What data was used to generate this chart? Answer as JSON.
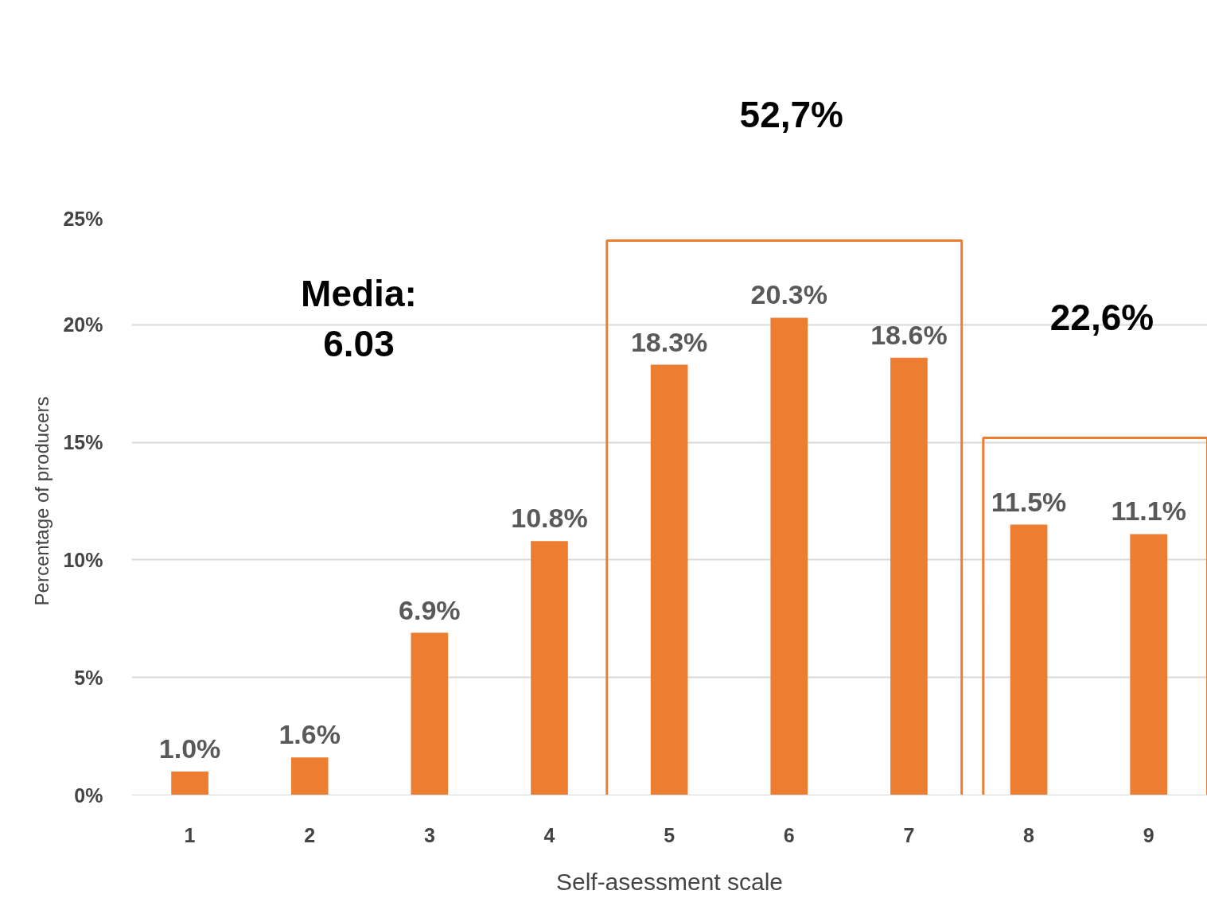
{
  "chart_data": {
    "type": "bar",
    "xlabel": "Self-asessment scale",
    "ylabel": "Percentage of producers",
    "categories": [
      "1",
      "2",
      "3",
      "4",
      "5",
      "6",
      "7",
      "8",
      "9"
    ],
    "values": [
      1.0,
      1.6,
      6.9,
      10.8,
      18.3,
      20.3,
      18.6,
      11.5,
      11.1
    ],
    "value_labels": [
      "1.0%",
      "1.6%",
      "6.9%",
      "10.8%",
      "18.3%",
      "20.3%",
      "18.6%",
      "11.5%",
      "11.1%"
    ],
    "color": "#ed7d31",
    "ylim": [
      0,
      25
    ],
    "yticks": [
      {
        "value": 0,
        "label": "0%"
      },
      {
        "value": 5,
        "label": "5%"
      },
      {
        "value": 10,
        "label": "10%"
      },
      {
        "value": 15,
        "label": "15%"
      },
      {
        "value": 20,
        "label": "20%"
      },
      {
        "value": 25,
        "label": "25%"
      }
    ],
    "grid": "y",
    "annotations": [
      "Media:\n6.03",
      "52,7%",
      "22,6%"
    ]
  }
}
